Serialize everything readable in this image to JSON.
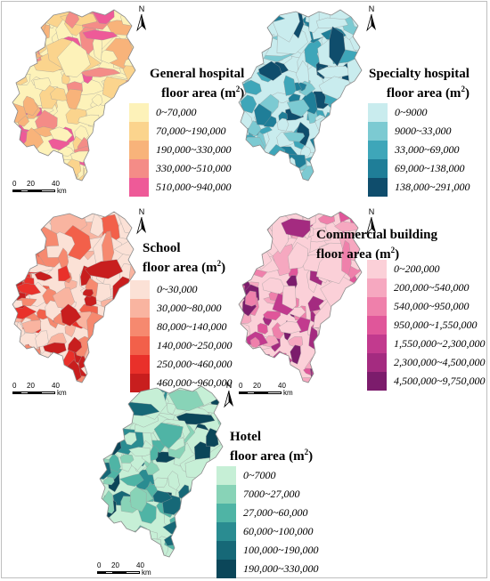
{
  "scale": {
    "t0": "0",
    "t1": "20",
    "t2": "40",
    "unit": "km"
  },
  "north": "N",
  "panels": [
    {
      "id": "general_hospital",
      "title_line1": "General hospital",
      "title_line2": "floor area (m",
      "sup": "2",
      "title_end": ")",
      "legend": [
        {
          "label": "0~70,000",
          "color": "#fdf2b9"
        },
        {
          "label": "70,000~190,000",
          "color": "#fbd48d"
        },
        {
          "label": "190,000~330,000",
          "color": "#f8b37a"
        },
        {
          "label": "330,000~510,000",
          "color": "#f48c87"
        },
        {
          "label": "510,000~940,000",
          "color": "#ee5a98"
        }
      ]
    },
    {
      "id": "specialty_hospital",
      "title_line1": "Specialty hospital",
      "title_line2": "floor area (m",
      "sup": "2",
      "title_end": ")",
      "legend": [
        {
          "label": "0~9000",
          "color": "#c9ecee"
        },
        {
          "label": "9000~33,000",
          "color": "#7ccad2"
        },
        {
          "label": "33,000~69,000",
          "color": "#3ea6b9"
        },
        {
          "label": "69,000~138,000",
          "color": "#1f7e98"
        },
        {
          "label": "138,000~291,000",
          "color": "#0f4d6c"
        }
      ]
    },
    {
      "id": "school",
      "title_line1": "School",
      "title_line2": "floor area (m",
      "sup": "2",
      "title_end": ")",
      "legend": [
        {
          "label": "0~30,000",
          "color": "#fbe1d6"
        },
        {
          "label": "30,000~80,000",
          "color": "#f9b4a0"
        },
        {
          "label": "80,000~140,000",
          "color": "#f6896f"
        },
        {
          "label": "140,000~250,000",
          "color": "#f2604a"
        },
        {
          "label": "250,000~460,000",
          "color": "#e9302a"
        },
        {
          "label": "460,000~960,000",
          "color": "#c81e1e"
        }
      ]
    },
    {
      "id": "commercial",
      "title_line1": "Commercial building",
      "title_line2": "floor area (m",
      "sup": "2",
      "title_end": ")",
      "legend": [
        {
          "label": "0~200,000",
          "color": "#fbd0d8"
        },
        {
          "label": "200,000~540,000",
          "color": "#f6a8c0"
        },
        {
          "label": "540,000~950,000",
          "color": "#ef80ab"
        },
        {
          "label": "950,000~1,550,000",
          "color": "#e0569a"
        },
        {
          "label": "1,550,000~2,300,000",
          "color": "#c23a8e"
        },
        {
          "label": "2,300,000~4,500,000",
          "color": "#a42b80"
        },
        {
          "label": "4,500,000~9,750,000",
          "color": "#7c1c6c"
        }
      ]
    },
    {
      "id": "hotel",
      "title_line1": "Hotel",
      "title_line2": "floor area (m",
      "sup": "2",
      "title_end": ")",
      "legend": [
        {
          "label": "0~7000",
          "color": "#c6efd6"
        },
        {
          "label": "7000~27,000",
          "color": "#88d3b7"
        },
        {
          "label": "27,000~60,000",
          "color": "#4fb4a5"
        },
        {
          "label": "60,000~100,000",
          "color": "#2a8c91"
        },
        {
          "label": "100,000~190,000",
          "color": "#166877"
        },
        {
          "label": "190,000~330,000",
          "color": "#0b4659"
        }
      ]
    }
  ]
}
